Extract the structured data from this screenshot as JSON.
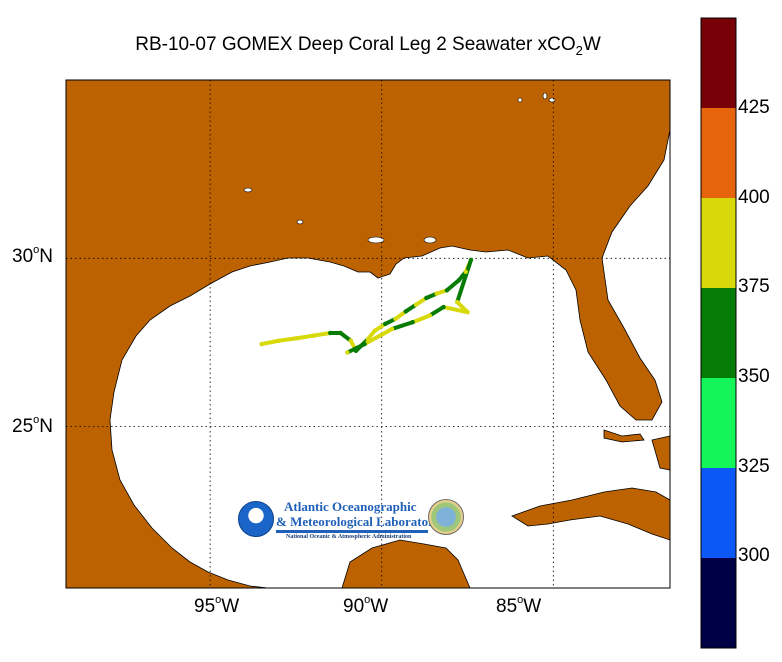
{
  "title": {
    "main": "RB-10-07 GOMEX Deep Coral Leg 2 Seawater xCO",
    "subscript": "2",
    "suffix": "W"
  },
  "axes": {
    "y_ticks": [
      {
        "value": "30",
        "sup": "o",
        "hemi": "N",
        "lat": 30
      },
      {
        "value": "25",
        "sup": "o",
        "hemi": "N",
        "lat": 25
      }
    ],
    "x_ticks": [
      {
        "value": "95",
        "sup": "o",
        "hemi": "W",
        "lon": -95
      },
      {
        "value": "90",
        "sup": "o",
        "hemi": "W",
        "lon": -90
      },
      {
        "value": "85",
        "sup": "o",
        "hemi": "W",
        "lon": -85
      }
    ],
    "lon_range": [
      -99.2,
      -81.6
    ],
    "lat_range": [
      20.2,
      35.3
    ]
  },
  "colorbar": {
    "labels": [
      "425",
      "400",
      "375",
      "350",
      "325",
      "300"
    ],
    "bins": [
      {
        "min": 275,
        "max": 300,
        "color": "#000045"
      },
      {
        "min": 300,
        "max": 325,
        "color": "#0b58f6"
      },
      {
        "min": 325,
        "max": 350,
        "color": "#14f55a"
      },
      {
        "min": 350,
        "max": 375,
        "color": "#067b05"
      },
      {
        "min": 375,
        "max": 400,
        "color": "#d8d90a"
      },
      {
        "min": 400,
        "max": 425,
        "color": "#e5640c"
      },
      {
        "min": 425,
        "max": 450,
        "color": "#780007"
      }
    ]
  },
  "colors": {
    "land": "#bd6200",
    "ocean": "#ffffff"
  },
  "chart_data": {
    "type": "scatter",
    "title": "RB-10-07 GOMEX Deep Coral Leg 2 Seawater xCO2W",
    "xlabel": "",
    "ylabel": "",
    "x_axis": "longitude (degrees, W negative)",
    "y_axis": "latitude (degrees N)",
    "xlim": [
      -99.2,
      -81.6
    ],
    "ylim": [
      20.2,
      35.3
    ],
    "grid": true,
    "colorbar_range": [
      275,
      450
    ],
    "track": [
      {
        "lon": -93.5,
        "lat": 27.45,
        "xco2": 385
      },
      {
        "lon": -93.0,
        "lat": 27.55,
        "xco2": 388
      },
      {
        "lon": -92.5,
        "lat": 27.62,
        "xco2": 382
      },
      {
        "lon": -92.0,
        "lat": 27.7,
        "xco2": 384
      },
      {
        "lon": -91.5,
        "lat": 27.78,
        "xco2": 372
      },
      {
        "lon": -91.2,
        "lat": 27.78,
        "xco2": 368
      },
      {
        "lon": -90.9,
        "lat": 27.55,
        "xco2": 380
      },
      {
        "lon": -90.75,
        "lat": 27.25,
        "xco2": 372
      },
      {
        "lon": -90.4,
        "lat": 27.6,
        "xco2": 382
      },
      {
        "lon": -90.2,
        "lat": 27.85,
        "xco2": 375
      },
      {
        "lon": -89.9,
        "lat": 28.05,
        "xco2": 365
      },
      {
        "lon": -89.6,
        "lat": 28.2,
        "xco2": 380
      },
      {
        "lon": -89.3,
        "lat": 28.42,
        "xco2": 366
      },
      {
        "lon": -89.0,
        "lat": 28.62,
        "xco2": 380
      },
      {
        "lon": -88.7,
        "lat": 28.82,
        "xco2": 362
      },
      {
        "lon": -88.4,
        "lat": 28.95,
        "xco2": 386
      },
      {
        "lon": -88.1,
        "lat": 29.05,
        "xco2": 370
      },
      {
        "lon": -87.75,
        "lat": 29.35,
        "xco2": 364
      },
      {
        "lon": -87.55,
        "lat": 29.6,
        "xco2": 380
      },
      {
        "lon": -87.4,
        "lat": 29.95,
        "xco2": 366
      },
      {
        "lon": -87.8,
        "lat": 28.7,
        "xco2": 390
      },
      {
        "lon": -87.5,
        "lat": 28.4,
        "xco2": 386
      },
      {
        "lon": -88.2,
        "lat": 28.55,
        "xco2": 370
      },
      {
        "lon": -88.6,
        "lat": 28.3,
        "xco2": 384
      },
      {
        "lon": -89.1,
        "lat": 28.1,
        "xco2": 372
      },
      {
        "lon": -89.7,
        "lat": 27.9,
        "xco2": 388
      },
      {
        "lon": -90.5,
        "lat": 27.45,
        "xco2": 364
      },
      {
        "lon": -91.0,
        "lat": 27.2,
        "xco2": 376
      }
    ]
  },
  "logo": {
    "line1": "Atlantic Oceanographic",
    "line2": "& Meteorological Laboratory",
    "line3": "National Oceanic & Atmospheric Administration",
    "emblem": "NOAA"
  }
}
